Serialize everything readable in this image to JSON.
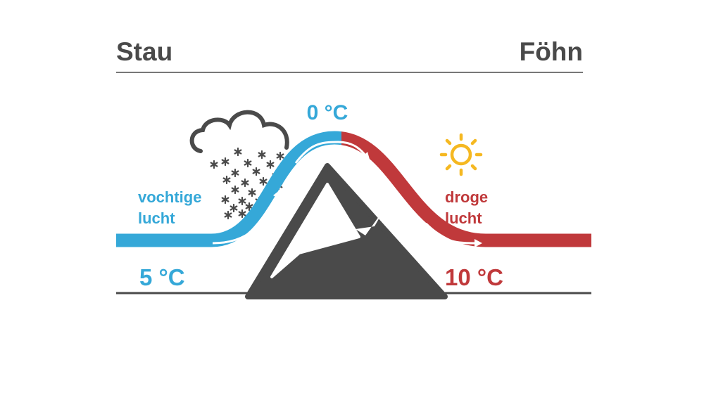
{
  "header": {
    "left_title": "Stau",
    "right_title": "Föhn"
  },
  "labels": {
    "peak_temp": "0 °C",
    "left_air_line1": "vochtige",
    "left_air_line2": "lucht",
    "right_air_line1": "droge",
    "right_air_line2": "lucht",
    "left_temp": "5 °C",
    "right_temp": "10 °C"
  },
  "colors": {
    "moist": "#35a8d8",
    "dry": "#c0393b",
    "gray": "#4a4a4a",
    "sun": "#f5b821"
  },
  "icons": [
    "cloud-icon",
    "snow-icon",
    "sun-icon",
    "mountain-icon",
    "arrow-icon"
  ]
}
